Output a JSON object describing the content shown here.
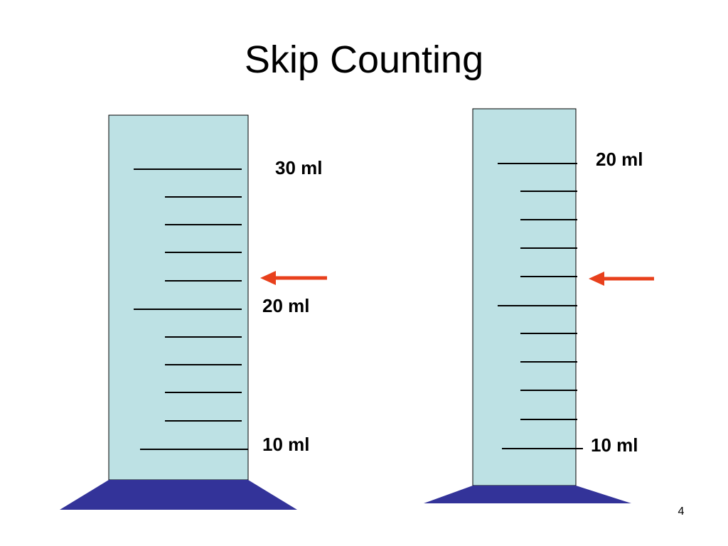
{
  "header": {
    "title": "Skip Counting"
  },
  "cylinders": [
    {
      "labels": [
        "30 ml",
        "20 ml",
        "10 ml"
      ]
    },
    {
      "labels": [
        "20 ml",
        "10 ml"
      ]
    }
  ],
  "footer": {
    "page_number": "4"
  }
}
